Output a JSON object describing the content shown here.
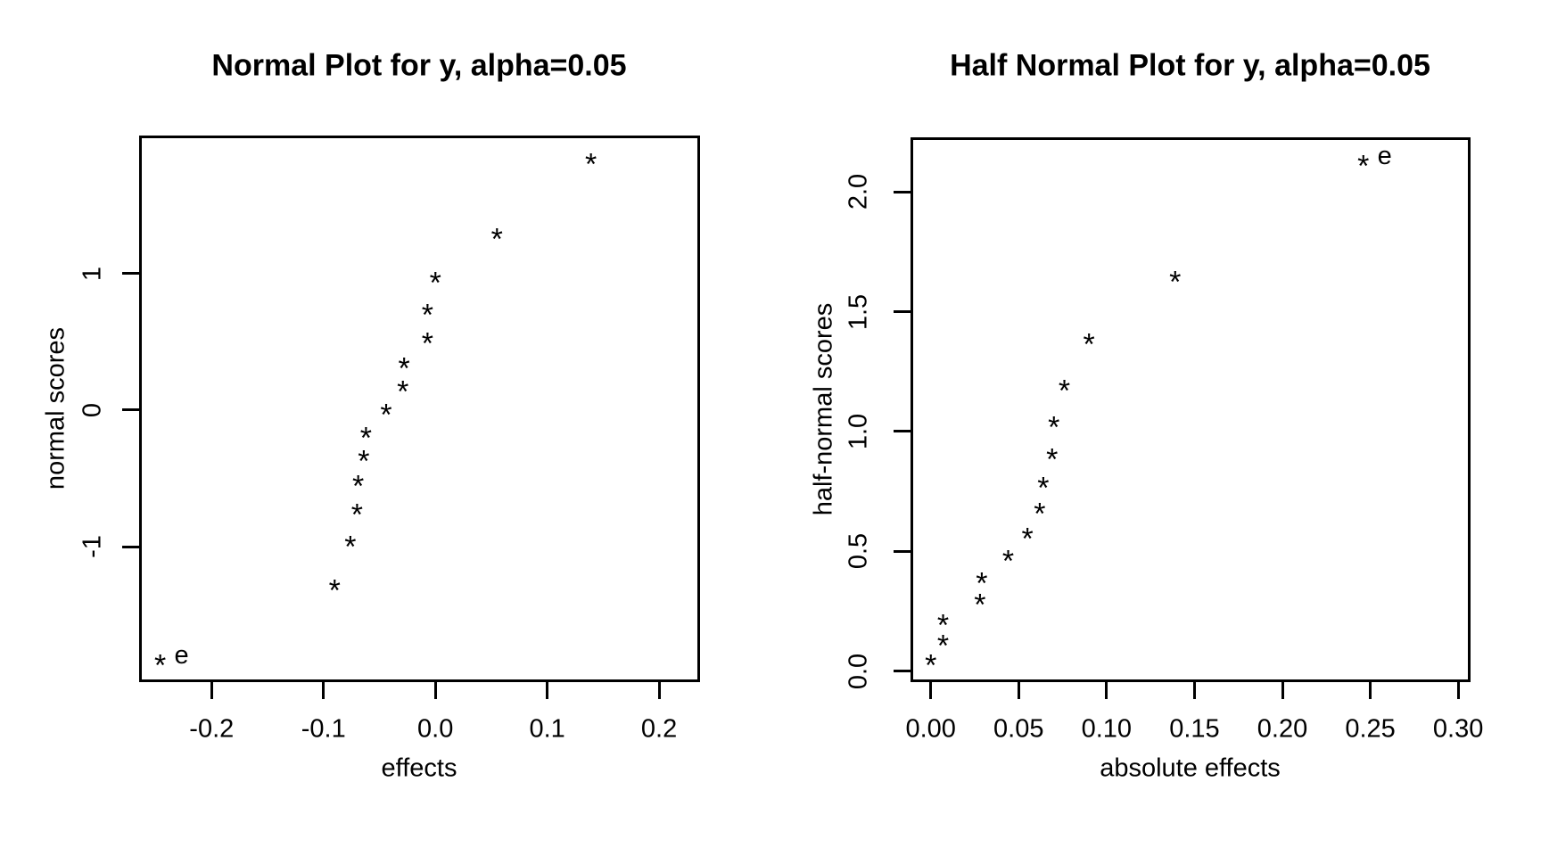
{
  "page": {
    "background_color": "#ffffff",
    "foreground_color": "#000000"
  },
  "chart_data": [
    {
      "type": "scatter",
      "title": "Normal Plot for y, alpha=0.05",
      "xlabel": "effects",
      "ylabel": "normal scores",
      "marker": "*",
      "grid": false,
      "legend": null,
      "xlim": [
        -0.264,
        0.235
      ],
      "ylim": [
        -1.976,
        2.002
      ],
      "xtick_values": [
        -0.2,
        -0.1,
        0.0,
        0.1,
        0.2
      ],
      "xtick_labels": [
        "-0.2",
        "-0.1",
        "0.0",
        "0.1",
        "0.2"
      ],
      "ytick_values": [
        -1,
        0,
        1
      ],
      "ytick_labels": [
        "-1",
        "0",
        "1"
      ],
      "points": [
        {
          "x": -0.246,
          "y": -1.834,
          "label": "e"
        },
        {
          "x": -0.09,
          "y": -1.282
        },
        {
          "x": -0.076,
          "y": -0.967
        },
        {
          "x": -0.07,
          "y": -0.728
        },
        {
          "x": -0.069,
          "y": -0.524
        },
        {
          "x": -0.064,
          "y": -0.34
        },
        {
          "x": -0.062,
          "y": -0.168
        },
        {
          "x": -0.044,
          "y": 0.0
        },
        {
          "x": -0.029,
          "y": 0.168
        },
        {
          "x": -0.028,
          "y": 0.34
        },
        {
          "x": -0.007,
          "y": 0.524
        },
        {
          "x": -0.007,
          "y": 0.728
        },
        {
          "x": 0.0,
          "y": 0.967
        },
        {
          "x": 0.055,
          "y": 1.282
        },
        {
          "x": 0.139,
          "y": 1.834
        }
      ]
    },
    {
      "type": "scatter",
      "title": "Half Normal Plot for y, alpha=0.05",
      "xlabel": "absolute effects",
      "ylabel": "half-normal scores",
      "marker": "*",
      "grid": false,
      "legend": null,
      "xlim": [
        -0.011,
        0.306
      ],
      "ylim": [
        -0.039,
        2.224
      ],
      "xtick_values": [
        0.0,
        0.05,
        0.1,
        0.15,
        0.2,
        0.25,
        0.3
      ],
      "xtick_labels": [
        "0.00",
        "0.05",
        "0.10",
        "0.15",
        "0.20",
        "0.25",
        "0.30"
      ],
      "ytick_values": [
        0.0,
        0.5,
        1.0,
        1.5,
        2.0
      ],
      "ytick_labels": [
        "0.0",
        "0.5",
        "1.0",
        "1.5",
        "2.0"
      ],
      "points": [
        {
          "x": 0.0,
          "y": 0.042
        },
        {
          "x": 0.007,
          "y": 0.126
        },
        {
          "x": 0.007,
          "y": 0.21
        },
        {
          "x": 0.028,
          "y": 0.297
        },
        {
          "x": 0.029,
          "y": 0.385
        },
        {
          "x": 0.044,
          "y": 0.477
        },
        {
          "x": 0.055,
          "y": 0.573
        },
        {
          "x": 0.062,
          "y": 0.675
        },
        {
          "x": 0.064,
          "y": 0.784
        },
        {
          "x": 0.069,
          "y": 0.903
        },
        {
          "x": 0.07,
          "y": 1.036
        },
        {
          "x": 0.076,
          "y": 1.191
        },
        {
          "x": 0.09,
          "y": 1.383
        },
        {
          "x": 0.139,
          "y": 1.645
        },
        {
          "x": 0.246,
          "y": 2.128,
          "label": "e"
        }
      ]
    }
  ]
}
